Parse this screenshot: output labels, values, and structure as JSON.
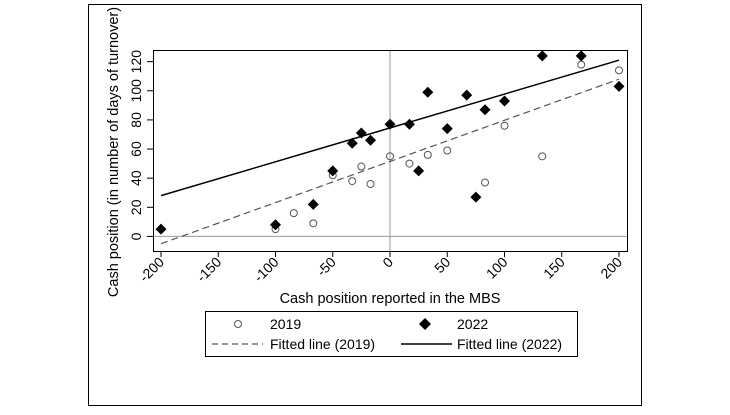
{
  "chart_data": {
    "type": "scatter",
    "xlabel": "Cash position reported in the MBS",
    "ylabel": "Cash position (in number of days of turnover)",
    "xlim": [
      -200,
      200
    ],
    "ylim": [
      -10,
      128
    ],
    "x_ticks": [
      "-200",
      "-150",
      "-100",
      "-50",
      "0",
      "50",
      "100",
      "150",
      "200"
    ],
    "y_ticks": [
      "0",
      "20",
      "40",
      "60",
      "80",
      "100",
      "120"
    ],
    "reference_lines": {
      "x": 0,
      "y": 0
    },
    "series": [
      {
        "name": "2019",
        "marker": "hollow-circle",
        "points": [
          [
            -100,
            5
          ],
          [
            -84,
            16
          ],
          [
            -67,
            9
          ],
          [
            -50,
            42
          ],
          [
            -33,
            38
          ],
          [
            -25,
            48
          ],
          [
            -17,
            36
          ],
          [
            0,
            55
          ],
          [
            17,
            50
          ],
          [
            33,
            56
          ],
          [
            50,
            59
          ],
          [
            83,
            37
          ],
          [
            100,
            76
          ],
          [
            133,
            55
          ],
          [
            167,
            118
          ],
          [
            200,
            114
          ]
        ]
      },
      {
        "name": "2022",
        "marker": "filled-diamond",
        "points": [
          [
            -200,
            5
          ],
          [
            -100,
            8
          ],
          [
            -67,
            22
          ],
          [
            -50,
            45
          ],
          [
            -33,
            64
          ],
          [
            -25,
            71
          ],
          [
            -17,
            66
          ],
          [
            0,
            77
          ],
          [
            17,
            77
          ],
          [
            25,
            45
          ],
          [
            33,
            99
          ],
          [
            50,
            74
          ],
          [
            67,
            97
          ],
          [
            75,
            27
          ],
          [
            83,
            87
          ],
          [
            100,
            93
          ],
          [
            133,
            124
          ],
          [
            167,
            124
          ],
          [
            200,
            103
          ]
        ]
      },
      {
        "name": "Fitted line (2019)",
        "kind": "fit-line",
        "style": "dashed",
        "points": [
          [
            -200,
            -5
          ],
          [
            200,
            108
          ]
        ]
      },
      {
        "name": "Fitted line (2022)",
        "kind": "fit-line",
        "style": "solid",
        "points": [
          [
            -200,
            28
          ],
          [
            200,
            121
          ]
        ]
      }
    ],
    "grid": false,
    "legend_placement": "bottom"
  }
}
